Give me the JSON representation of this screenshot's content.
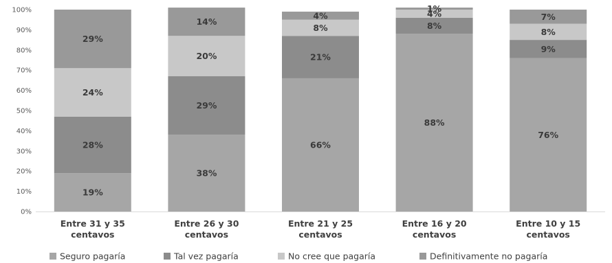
{
  "chart_data": {
    "type": "bar",
    "stacked": true,
    "percent_stacked": true,
    "title": "",
    "xlabel": "",
    "ylabel": "",
    "ylim": [
      0,
      100
    ],
    "yticks": [
      "0%",
      "10%",
      "20%",
      "30%",
      "40%",
      "50%",
      "60%",
      "70%",
      "80%",
      "90%",
      "100%"
    ],
    "categories": [
      [
        "Entre 31 y 35",
        "centavos"
      ],
      [
        "Entre 26 y 30",
        "centavos"
      ],
      [
        "Entre 21 y 25",
        "centavos"
      ],
      [
        "Entre 16 y 20",
        "centavos"
      ],
      [
        "Entre 10 y 15",
        "centavos"
      ]
    ],
    "series": [
      {
        "name": "Seguro pagaría",
        "color": "#a6a6a6",
        "values": [
          19,
          38,
          66,
          88,
          76
        ],
        "labels": [
          "19%",
          "38%",
          "66%",
          "88%",
          "76%"
        ]
      },
      {
        "name": "Tal vez pagaría",
        "color": "#8c8c8c",
        "values": [
          28,
          29,
          21,
          8,
          9
        ],
        "labels": [
          "28%",
          "29%",
          "21%",
          "8%",
          "9%"
        ]
      },
      {
        "name": "No cree que pagaría",
        "color": "#c8c8c8",
        "values": [
          24,
          20,
          8,
          4,
          8
        ],
        "labels": [
          "24%",
          "20%",
          "8%",
          "4%",
          "8%"
        ]
      },
      {
        "name": "Definitivamente no pagaría",
        "color": "#999999",
        "values": [
          29,
          14,
          4,
          1,
          7
        ],
        "labels": [
          "29%",
          "14%",
          "4%",
          "1%",
          "7%"
        ]
      }
    ],
    "legend_position": "bottom",
    "grid": false
  }
}
